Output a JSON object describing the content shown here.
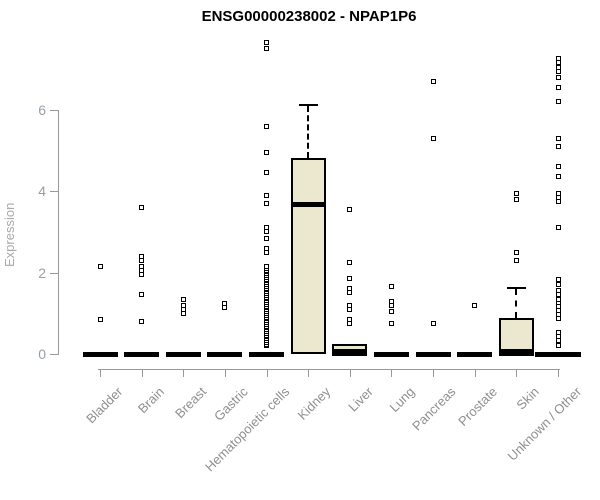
{
  "title": "ENSG00000238002 - NPAP1P6",
  "colors": {
    "box_fill": "#ECE8D0",
    "box_border": "#000000",
    "median": "#000000",
    "outlier": "#000000",
    "axis": "#999999",
    "tick_label": "#96a0a6",
    "category_label": "#8f8f8f",
    "title": "#000000"
  },
  "chart_data": {
    "type": "boxplot",
    "title": "ENSG00000238002 - NPAP1P6",
    "xlabel": "",
    "ylabel": "Expression",
    "yticks": [
      0,
      2,
      4,
      6
    ],
    "ylim": [
      0,
      7.8
    ],
    "grid": false,
    "legend": false,
    "categories": [
      "Bladder",
      "Brain",
      "Breast",
      "Gastric",
      "Hematopoietic cells",
      "Kidney",
      "Liver",
      "Lung",
      "Pancreas",
      "Prostate",
      "Skin",
      "Unknown / Other"
    ],
    "boxes": [
      {
        "category": "Bladder",
        "q1": 0,
        "median": 0,
        "q3": 0,
        "outliers": [
          2.15,
          0.85
        ]
      },
      {
        "category": "Brain",
        "q1": 0,
        "median": 0,
        "q3": 0,
        "outliers": [
          3.6,
          2.4,
          2.3,
          2.15,
          2.05,
          1.95,
          1.45,
          0.8
        ]
      },
      {
        "category": "Breast",
        "q1": 0,
        "median": 0,
        "q3": 0,
        "outliers": [
          1.35,
          1.2,
          1.1,
          1.0
        ]
      },
      {
        "category": "Gastric",
        "q1": 0,
        "median": 0,
        "q3": 0,
        "outliers": [
          1.25,
          1.15
        ]
      },
      {
        "category": "Hematopoietic cells",
        "q1": 0,
        "median": 0,
        "q3": 0,
        "outliers": [
          7.65,
          7.5,
          5.6,
          4.95,
          4.45,
          3.9,
          3.7,
          3.1,
          3.0,
          2.85,
          2.6,
          2.5
        ],
        "outlier_band": {
          "min": 0.2,
          "max": 2.15,
          "count": 45
        }
      },
      {
        "category": "Kidney",
        "q1": 0.05,
        "median": 3.67,
        "q3": 4.77,
        "whisker_high": 6.12,
        "outliers": []
      },
      {
        "category": "Liver",
        "q1": 0,
        "median": 0.05,
        "q3": 0.2,
        "outliers": [
          3.55,
          2.25,
          1.85,
          1.6,
          1.5,
          1.2,
          1.1,
          0.85,
          0.75
        ]
      },
      {
        "category": "Lung",
        "q1": 0,
        "median": 0,
        "q3": 0,
        "outliers": [
          1.65,
          1.3,
          1.2,
          1.05,
          0.75
        ]
      },
      {
        "category": "Pancreas",
        "q1": 0,
        "median": 0,
        "q3": 0,
        "outliers": [
          6.7,
          5.3,
          0.75
        ]
      },
      {
        "category": "Prostate",
        "q1": 0,
        "median": 0,
        "q3": 0,
        "outliers": [
          1.2
        ]
      },
      {
        "category": "Skin",
        "q1": 0,
        "median": 0.05,
        "q3": 0.84,
        "whisker_high": 1.62,
        "outliers": [
          3.95,
          3.8,
          2.5,
          2.3
        ]
      },
      {
        "category": "Unknown / Other",
        "q1": 0,
        "median": 0,
        "q3": 0,
        "width": 46,
        "outliers": [
          7.25,
          7.15,
          7.05,
          6.95,
          6.8,
          6.55,
          6.2,
          5.3,
          5.1,
          4.6,
          4.35,
          3.95,
          3.85,
          3.75,
          3.1,
          1.82,
          1.7,
          1.57,
          1.45,
          1.33,
          1.25,
          1.16,
          1.06,
          0.96,
          0.88,
          0.54,
          0.44,
          0.32,
          0.22
        ]
      }
    ]
  }
}
